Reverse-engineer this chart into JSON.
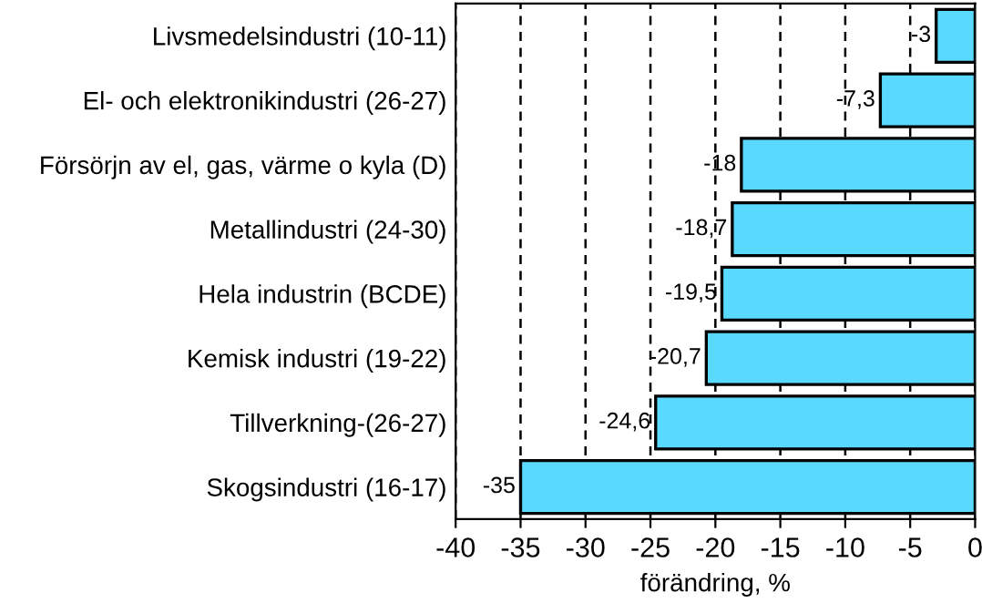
{
  "chart_data": {
    "type": "bar",
    "orientation": "horizontal",
    "xlabel": "förändring, %",
    "categories": [
      "Livsmedelsindustri (10-11)",
      "El- och elektronikindustri (26-27)",
      "Försörjn av el, gas, värme o kyla (D)",
      "Metallindustri (24-30)",
      "Hela industrin (BCDE)",
      "Kemisk industri (19-22)",
      "Tillverkning-(26-27)",
      "Skogsindustri (16-17)"
    ],
    "values": [
      -3,
      -7.3,
      -18,
      -18.7,
      -19.5,
      -20.7,
      -24.6,
      -35
    ],
    "value_labels": [
      "-3",
      "-7,3",
      "-18",
      "-18,7",
      "-19,5",
      "-20,7",
      "-24,6",
      "-35"
    ],
    "color": "#5ad9ff",
    "xlim": [
      -40,
      0
    ],
    "xticks": [
      -40,
      -35,
      -30,
      -25,
      -20,
      -15,
      -10,
      -5,
      0
    ],
    "grid": "x"
  }
}
